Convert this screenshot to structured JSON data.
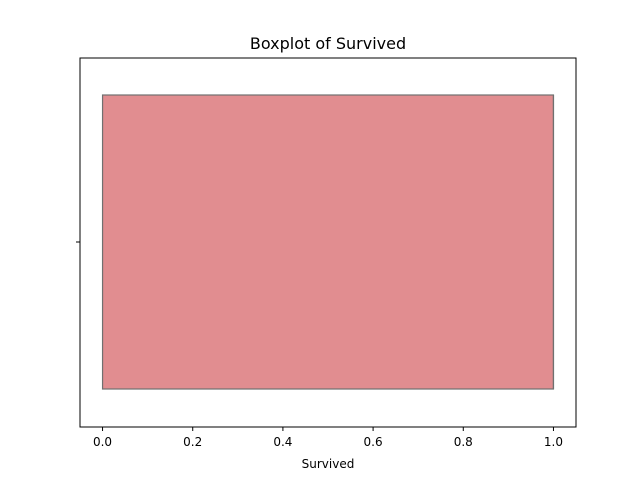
{
  "chart_data": {
    "type": "box",
    "title": "Boxplot of Survived",
    "xlabel": "Survived",
    "ylabel": "",
    "orientation": "horizontal",
    "xlim": [
      -0.05,
      1.05
    ],
    "xticks": [
      0.0,
      0.2,
      0.4,
      0.6,
      0.8,
      1.0
    ],
    "xtick_labels": [
      "0.0",
      "0.2",
      "0.4",
      "0.6",
      "0.8",
      "1.0"
    ],
    "grid": false,
    "box": {
      "min": 0,
      "q1": 0,
      "median": 1,
      "q3": 1,
      "max": 1,
      "fill_color": "#e18d90",
      "edge_color": "#707070"
    }
  }
}
